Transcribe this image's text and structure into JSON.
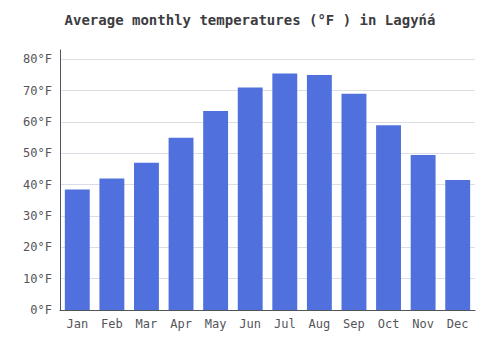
{
  "chart_data": {
    "type": "bar",
    "title": "Average monthly temperatures (°F ) in Lagyńá",
    "categories": [
      "Jan",
      "Feb",
      "Mar",
      "Apr",
      "May",
      "Jun",
      "Jul",
      "Aug",
      "Sep",
      "Oct",
      "Nov",
      "Dec"
    ],
    "values": [
      38.5,
      42.0,
      47.0,
      55.0,
      63.5,
      71.0,
      75.5,
      75.0,
      69.0,
      59.0,
      49.5,
      41.5
    ],
    "ylim": [
      0,
      83
    ],
    "yticks": [
      {
        "value": 0,
        "label": "0°F"
      },
      {
        "value": 10,
        "label": "10°F"
      },
      {
        "value": 20,
        "label": "20°F"
      },
      {
        "value": 30,
        "label": "30°F"
      },
      {
        "value": 40,
        "label": "40°F"
      },
      {
        "value": 50,
        "label": "50°F"
      },
      {
        "value": 60,
        "label": "60°F"
      },
      {
        "value": 70,
        "label": "70°F"
      },
      {
        "value": 80,
        "label": "80°F"
      }
    ],
    "grid": true
  }
}
